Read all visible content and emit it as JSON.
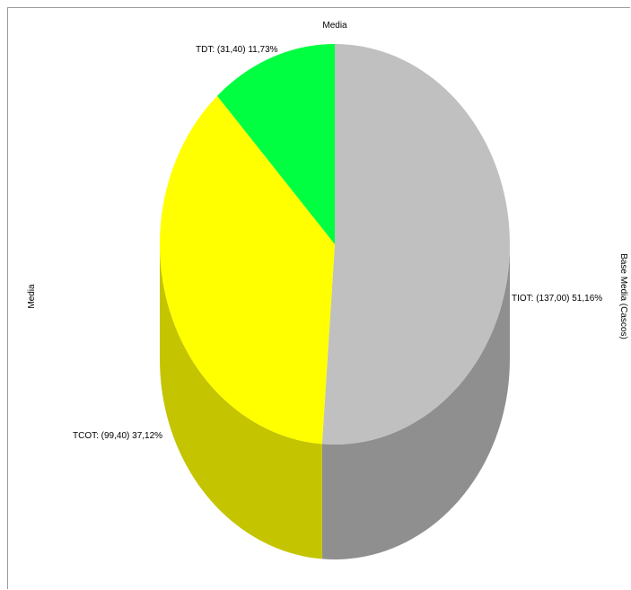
{
  "chart_data": {
    "type": "pie",
    "title": "Media",
    "ylabel": "Media",
    "right_axis_label": "Base Media (Cascos)",
    "categories": [
      "TIOT",
      "TCOT",
      "TDT"
    ],
    "values": [
      137.0,
      99.4,
      31.4
    ],
    "percent_labels": [
      "51,16%",
      "37,12%",
      "11,73%"
    ],
    "labels": [
      "TIOT: (137,00) 51,16%",
      "TCOT: (99,40) 37,12%",
      "TDT: (31,40) 11,73%"
    ],
    "colors": [
      "#c0c0c0",
      "#ffff00",
      "#00ff40"
    ],
    "side_colors": [
      "#8f8f8f",
      "#c4c400",
      "#00b030"
    ],
    "legend": "none",
    "grid": false,
    "style": "3d"
  }
}
